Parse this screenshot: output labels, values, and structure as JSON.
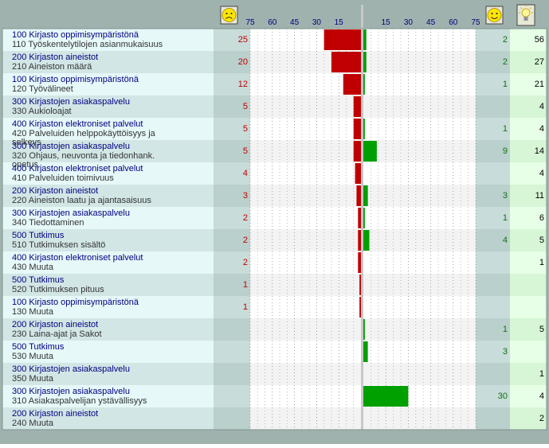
{
  "header": {
    "neg_ticks": [
      "75",
      "60",
      "45",
      "30",
      "15"
    ],
    "pos_ticks": [
      "15",
      "30",
      "45",
      "60",
      "75"
    ],
    "sad_icon": "sad-face-icon",
    "happy_icon": "smiley-face-icon",
    "idea_icon": "lightbulb-icon"
  },
  "colors": {
    "negative_bar": "#c00000",
    "positive_bar": "#00a000",
    "negative_text": "#c00000",
    "positive_text": "#107010",
    "label_text": "#000080",
    "frame_bg": "#9fb2ad"
  },
  "chart_data": {
    "type": "bar",
    "orientation": "horizontal-diverging",
    "axis": {
      "negative_range": [
        0,
        75
      ],
      "positive_range": [
        0,
        75
      ],
      "tick_step": 15
    },
    "rows": [
      {
        "cat_code": "100",
        "cat": "Kirjasto oppimisympäristönä",
        "sub_code": "110",
        "sub": "Työskentelytilojen asianmukaisuus",
        "neg": 25,
        "pos": 2,
        "ideas": 56
      },
      {
        "cat_code": "200",
        "cat": "Kirjaston aineistot",
        "sub_code": "210",
        "sub": "Aineiston määrä",
        "neg": 20,
        "pos": 2,
        "ideas": 27
      },
      {
        "cat_code": "100",
        "cat": "Kirjasto oppimisympäristönä",
        "sub_code": "120",
        "sub": "Työvälineet",
        "neg": 12,
        "pos": 1,
        "ideas": 21
      },
      {
        "cat_code": "300",
        "cat": "Kirjastojen asiakaspalvelu",
        "sub_code": "330",
        "sub": "Aukioloajat",
        "neg": 5,
        "pos": null,
        "ideas": 4
      },
      {
        "cat_code": "400",
        "cat": "Kirjaston elektroniset palvelut",
        "sub_code": "420",
        "sub": "Palveluiden helppokäyttöisyys ja selkeys",
        "neg": 5,
        "pos": 1,
        "ideas": 4
      },
      {
        "cat_code": "300",
        "cat": "Kirjastojen asiakaspalvelu",
        "sub_code": "320",
        "sub": "Ohjaus, neuvonta ja tiedonhank. opetus",
        "neg": 5,
        "pos": 9,
        "ideas": 14
      },
      {
        "cat_code": "400",
        "cat": "Kirjaston elektroniset palvelut",
        "sub_code": "410",
        "sub": "Palveluiden toimivuus",
        "neg": 4,
        "pos": null,
        "ideas": 4
      },
      {
        "cat_code": "200",
        "cat": "Kirjaston aineistot",
        "sub_code": "220",
        "sub": "Aineiston laatu ja ajantasaisuus",
        "neg": 3,
        "pos": 3,
        "ideas": 11
      },
      {
        "cat_code": "300",
        "cat": "Kirjastojen asiakaspalvelu",
        "sub_code": "340",
        "sub": "Tiedottaminen",
        "neg": 2,
        "pos": 1,
        "ideas": 6
      },
      {
        "cat_code": "500",
        "cat": "Tutkimus",
        "sub_code": "510",
        "sub": "Tutkimuksen sisältö",
        "neg": 2,
        "pos": 4,
        "ideas": 5
      },
      {
        "cat_code": "400",
        "cat": "Kirjaston elektroniset palvelut",
        "sub_code": "430",
        "sub": "Muuta",
        "neg": 2,
        "pos": null,
        "ideas": 1
      },
      {
        "cat_code": "500",
        "cat": "Tutkimus",
        "sub_code": "520",
        "sub": "Tutkimuksen pituus",
        "neg": 1,
        "pos": null,
        "ideas": null
      },
      {
        "cat_code": "100",
        "cat": "Kirjasto oppimisympäristönä",
        "sub_code": "130",
        "sub": "Muuta",
        "neg": 1,
        "pos": null,
        "ideas": null
      },
      {
        "cat_code": "200",
        "cat": "Kirjaston aineistot",
        "sub_code": "230",
        "sub": "Laina-ajat ja Sakot",
        "neg": null,
        "pos": 1,
        "ideas": 5
      },
      {
        "cat_code": "500",
        "cat": "Tutkimus",
        "sub_code": "530",
        "sub": "Muuta",
        "neg": null,
        "pos": 3,
        "ideas": null
      },
      {
        "cat_code": "300",
        "cat": "Kirjastojen asiakaspalvelu",
        "sub_code": "350",
        "sub": "Muuta",
        "neg": null,
        "pos": null,
        "ideas": 1
      },
      {
        "cat_code": "300",
        "cat": "Kirjastojen asiakaspalvelu",
        "sub_code": "310",
        "sub": "Asiakaspalvelijan ystävällisyys",
        "neg": null,
        "pos": 30,
        "ideas": 4
      },
      {
        "cat_code": "200",
        "cat": "Kirjaston aineistot",
        "sub_code": "240",
        "sub": "Muuta",
        "neg": null,
        "pos": null,
        "ideas": 2
      }
    ]
  }
}
